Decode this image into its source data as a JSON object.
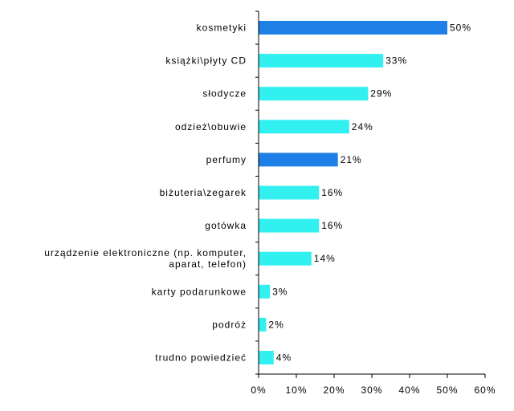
{
  "chart_data": {
    "type": "bar",
    "orientation": "horizontal",
    "categories": [
      "kosmetyki",
      "książki\\płyty CD",
      "słodycze",
      "odzież\\obuwie",
      "perfumy",
      "biżuteria\\zegarek",
      "gotówka",
      "urządzenie elektroniczne (np. komputer,\naparat, telefon)",
      "karty podarunkowe",
      "podróż",
      "trudno powiedzieć"
    ],
    "values": [
      50,
      33,
      29,
      24,
      21,
      16,
      16,
      14,
      3,
      2,
      4
    ],
    "value_labels": [
      "50%",
      "33%",
      "29%",
      "24%",
      "21%",
      "16%",
      "16%",
      "14%",
      "3%",
      "2%",
      "4%"
    ],
    "bar_colors": [
      "#1e7fe6",
      "#33f0f0",
      "#33f0f0",
      "#33f0f0",
      "#1e7fe6",
      "#33f0f0",
      "#33f0f0",
      "#33f0f0",
      "#33f0f0",
      "#33f0f0",
      "#33f0f0"
    ],
    "xlim": [
      0,
      60
    ],
    "x_ticks": [
      "0%",
      "10%",
      "20%",
      "30%",
      "40%",
      "50%",
      "60%"
    ],
    "title": "",
    "xlabel": "",
    "ylabel": "",
    "grid": false,
    "legend": "none"
  }
}
